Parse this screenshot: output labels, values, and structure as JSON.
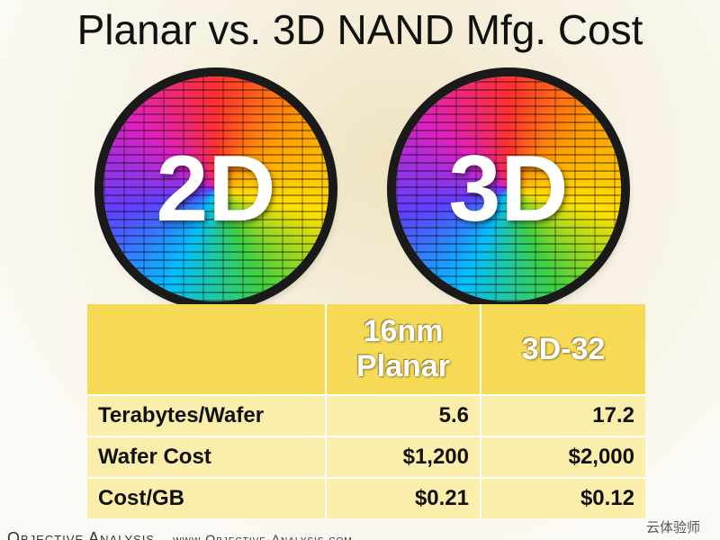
{
  "slide": {
    "title": "Planar vs. 3D NAND Mfg. Cost",
    "wafers": [
      {
        "label": "2D"
      },
      {
        "label": "3D"
      }
    ],
    "table": {
      "header": [
        "16nm Planar",
        "3D-32"
      ],
      "rows": [
        [
          "Terabytes/Wafer",
          "5.6",
          "17.2"
        ],
        [
          "Wafer Cost",
          "$1,200",
          "$2,000"
        ],
        [
          "Cost/GB",
          "$0.21",
          "$0.12"
        ]
      ]
    },
    "footer": {
      "company": "Objective Analysis",
      "url": "www.Objective-Analysis.com"
    },
    "watermark": "云体验师"
  }
}
